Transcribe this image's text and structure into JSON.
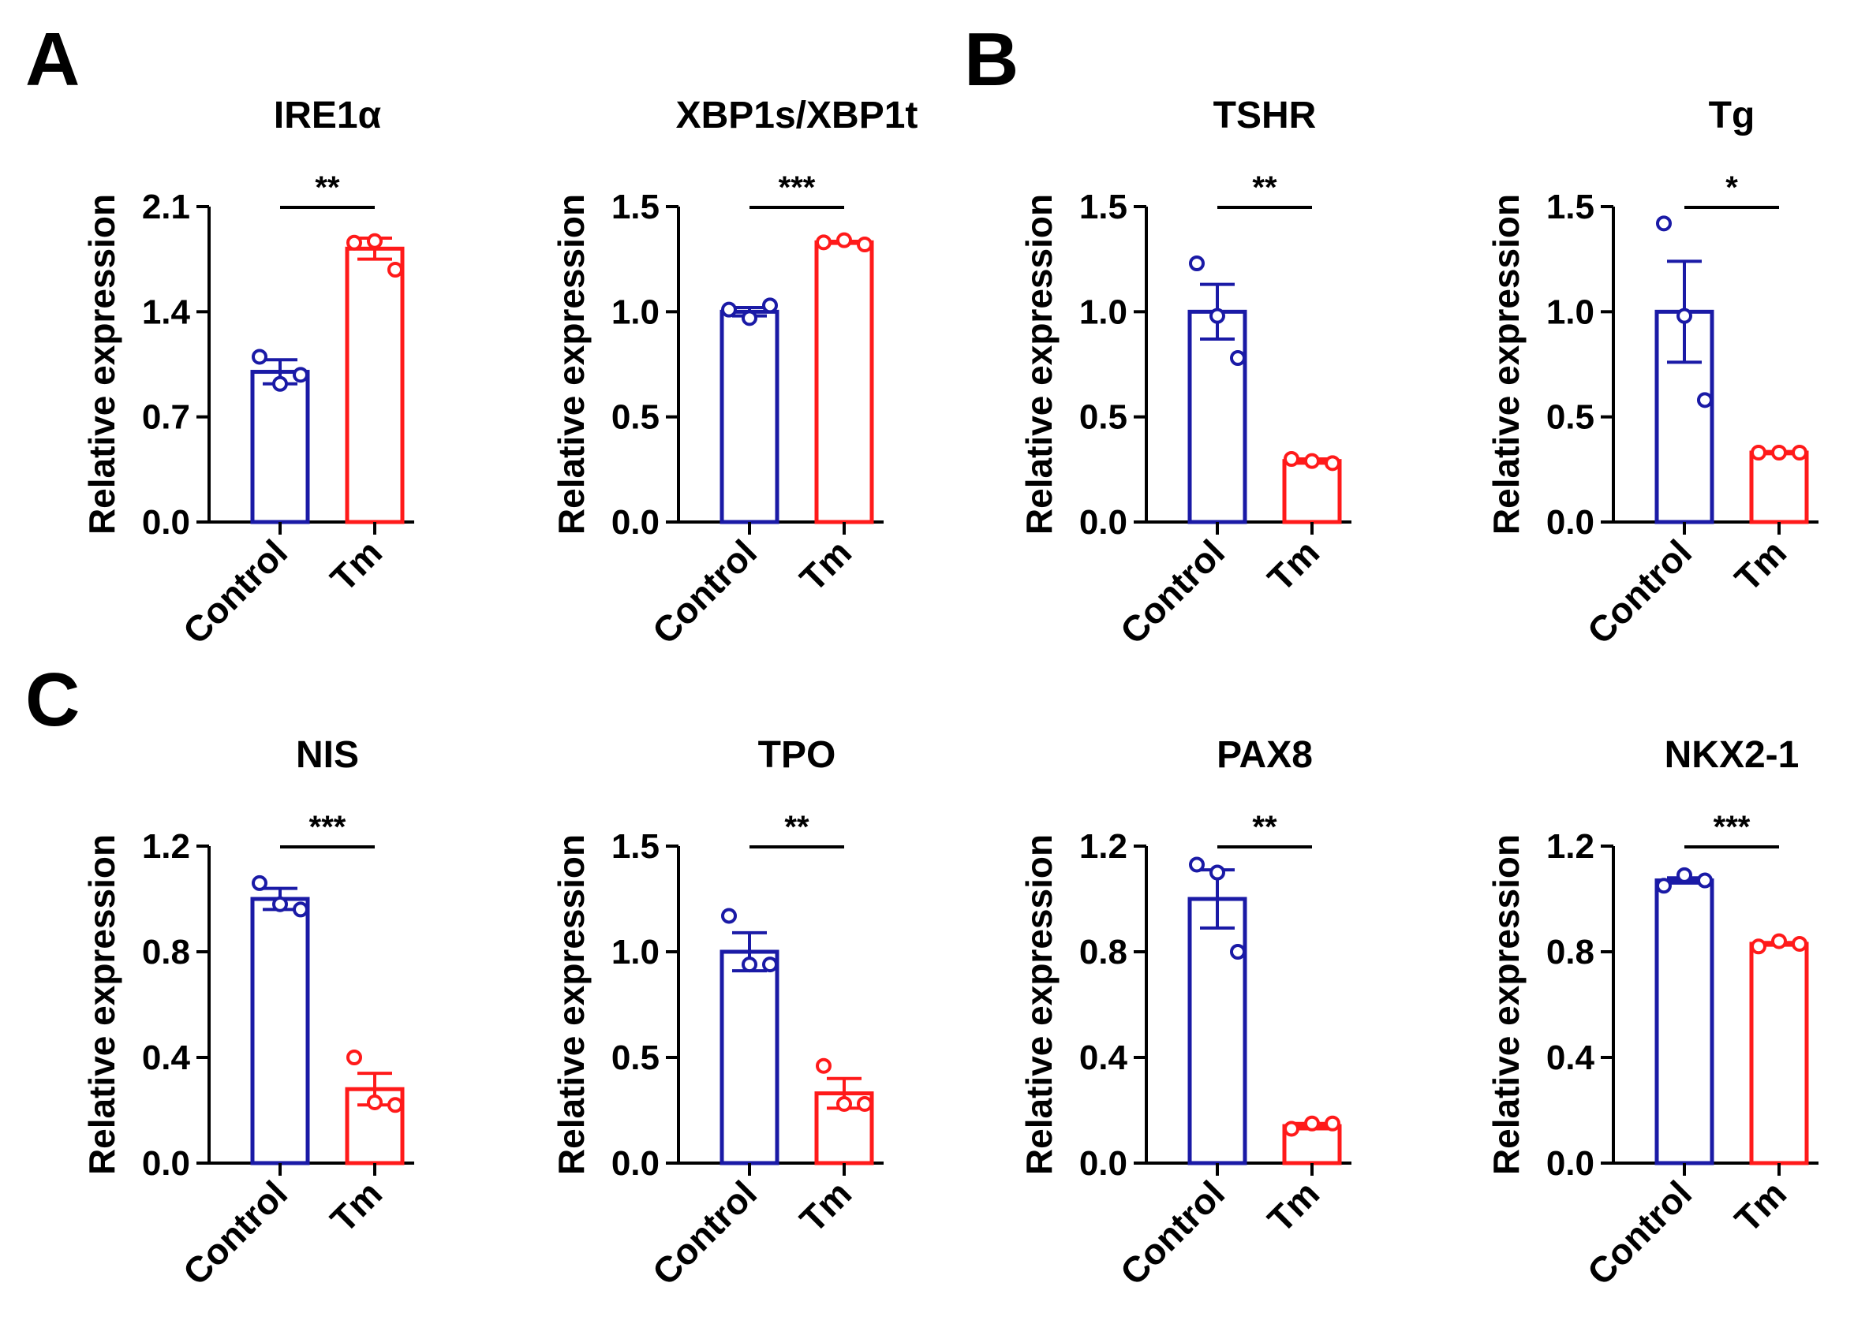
{
  "panel_labels": [
    "A",
    "B",
    "C"
  ],
  "colors": {
    "control": "#1a1aa6",
    "treatment": "#ff1a1a",
    "axis": "#000000"
  },
  "chart_data": [
    {
      "type": "bar",
      "panel": "A",
      "title": "IRE1α",
      "ylabel": "Relative expression",
      "categories": [
        "Control",
        "Tm"
      ],
      "ylim": [
        0,
        2.1
      ],
      "yticks": [
        "0.0",
        "0.7",
        "1.4",
        "2.1"
      ],
      "values": [
        1.0,
        1.82
      ],
      "errors": [
        0.08,
        0.07
      ],
      "points": [
        [
          1.1,
          0.92,
          0.98
        ],
        [
          1.86,
          1.87,
          1.68
        ]
      ],
      "significance": "**"
    },
    {
      "type": "bar",
      "panel": "A",
      "title": "XBP1s/XBP1t",
      "ylabel": "Relative expression",
      "categories": [
        "Control",
        "Tm"
      ],
      "ylim": [
        0,
        1.5
      ],
      "yticks": [
        "0.0",
        "0.5",
        "1.0",
        "1.5"
      ],
      "values": [
        1.0,
        1.33
      ],
      "errors": [
        0.02,
        0.005
      ],
      "points": [
        [
          1.01,
          0.97,
          1.03
        ],
        [
          1.33,
          1.34,
          1.32
        ]
      ],
      "significance": "***"
    },
    {
      "type": "bar",
      "panel": "B",
      "title": "TSHR",
      "ylabel": "Relative expression",
      "categories": [
        "Control",
        "Tm"
      ],
      "ylim": [
        0,
        1.5
      ],
      "yticks": [
        "0.0",
        "0.5",
        "1.0",
        "1.5"
      ],
      "values": [
        1.0,
        0.29
      ],
      "errors": [
        0.13,
        0.01
      ],
      "points": [
        [
          1.23,
          0.98,
          0.78
        ],
        [
          0.3,
          0.29,
          0.28
        ]
      ],
      "significance": "**"
    },
    {
      "type": "bar",
      "panel": "B",
      "title": "Tg",
      "ylabel": "Relative expression",
      "categories": [
        "Control",
        "Tm"
      ],
      "ylim": [
        0,
        1.5
      ],
      "yticks": [
        "0.0",
        "0.5",
        "1.0",
        "1.5"
      ],
      "values": [
        1.0,
        0.33
      ],
      "errors": [
        0.24,
        0.005
      ],
      "points": [
        [
          1.42,
          0.98,
          0.58
        ],
        [
          0.33,
          0.33,
          0.33
        ]
      ],
      "significance": "*"
    },
    {
      "type": "bar",
      "panel": "C",
      "title": "NIS",
      "ylabel": "Relative expression",
      "categories": [
        "Control",
        "Tm"
      ],
      "ylim": [
        0,
        1.2
      ],
      "yticks": [
        "0.0",
        "0.4",
        "0.8",
        "1.2"
      ],
      "values": [
        1.0,
        0.28
      ],
      "errors": [
        0.04,
        0.06
      ],
      "points": [
        [
          1.06,
          0.98,
          0.96
        ],
        [
          0.4,
          0.23,
          0.22
        ]
      ],
      "significance": "***"
    },
    {
      "type": "bar",
      "panel": "C",
      "title": "TPO",
      "ylabel": "Relative expression",
      "categories": [
        "Control",
        "Tm"
      ],
      "ylim": [
        0,
        1.5
      ],
      "yticks": [
        "0.0",
        "0.5",
        "1.0",
        "1.5"
      ],
      "values": [
        1.0,
        0.33
      ],
      "errors": [
        0.09,
        0.07
      ],
      "points": [
        [
          1.17,
          0.94,
          0.94
        ],
        [
          0.46,
          0.28,
          0.28
        ]
      ],
      "significance": "**"
    },
    {
      "type": "bar",
      "panel": "C",
      "title": "PAX8",
      "ylabel": "Relative expression",
      "categories": [
        "Control",
        "Tm"
      ],
      "ylim": [
        0,
        1.2
      ],
      "yticks": [
        "0.0",
        "0.4",
        "0.8",
        "1.2"
      ],
      "values": [
        1.0,
        0.14
      ],
      "errors": [
        0.11,
        0.01
      ],
      "points": [
        [
          1.13,
          1.1,
          0.8
        ],
        [
          0.13,
          0.15,
          0.15
        ]
      ],
      "significance": "**"
    },
    {
      "type": "bar",
      "panel": "C",
      "title": "NKX2-1",
      "ylabel": "Relative expression",
      "categories": [
        "Control",
        "Tm"
      ],
      "ylim": [
        0,
        1.2
      ],
      "yticks": [
        "0.0",
        "0.4",
        "0.8",
        "1.2"
      ],
      "values": [
        1.07,
        0.83
      ],
      "errors": [
        0.01,
        0.005
      ],
      "points": [
        [
          1.05,
          1.09,
          1.07
        ],
        [
          0.82,
          0.84,
          0.83
        ]
      ],
      "significance": "***"
    }
  ]
}
